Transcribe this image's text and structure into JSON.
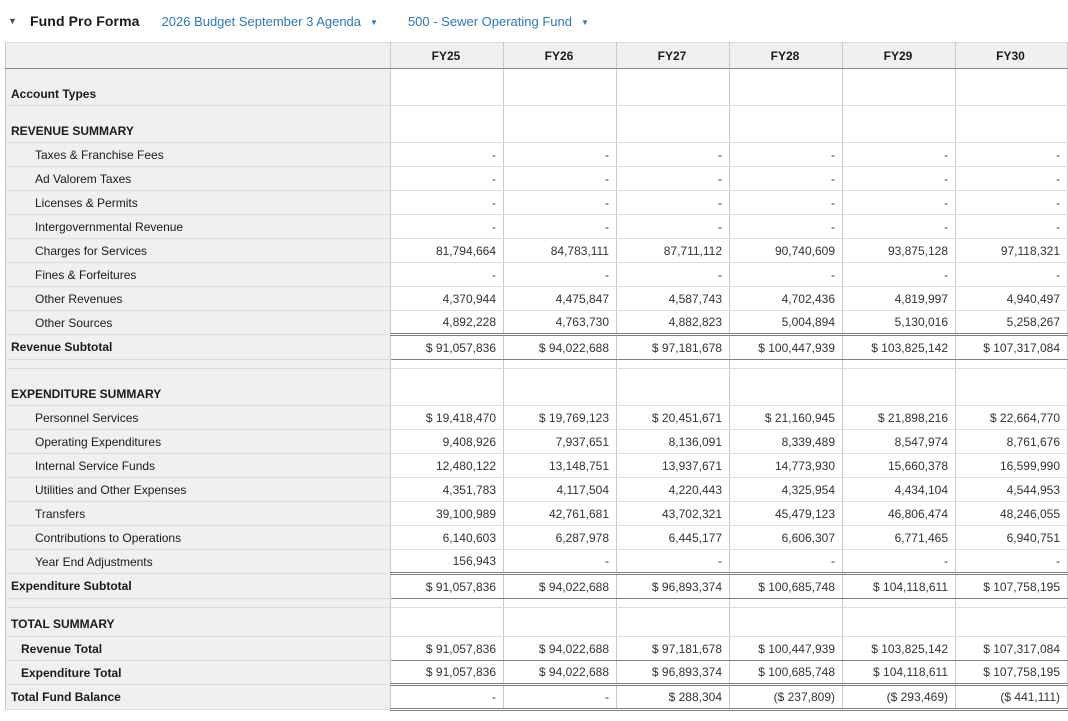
{
  "header": {
    "collapse_icon": "▼",
    "title": "Fund Pro Forma",
    "budget_dropdown": {
      "label": "2026 Budget September 3 Agenda",
      "caret": "▼"
    },
    "fund_dropdown": {
      "label": "500 - Sewer Operating Fund",
      "caret": "▼"
    }
  },
  "colors": {
    "link_blue": "#2e78b8",
    "header_bg": "#f0f0f0",
    "label_column_bg": "#f0f0ef",
    "dark_border": "#7f7f7f",
    "light_border": "#dcdcdc"
  },
  "table": {
    "columns": [
      "FY25",
      "FY26",
      "FY27",
      "FY28",
      "FY29",
      "FY30"
    ],
    "rows": [
      {
        "type": "section",
        "label": "Account Types",
        "values": [
          "",
          "",
          "",
          "",
          "",
          ""
        ]
      },
      {
        "type": "section",
        "label": "REVENUE SUMMARY",
        "values": [
          "",
          "",
          "",
          "",
          "",
          ""
        ]
      },
      {
        "type": "detail",
        "label": "Taxes & Franchise Fees",
        "values": [
          "-",
          "-",
          "-",
          "-",
          "-",
          "-"
        ]
      },
      {
        "type": "detail",
        "label": "Ad Valorem Taxes",
        "values": [
          "-",
          "-",
          "-",
          "-",
          "-",
          "-"
        ]
      },
      {
        "type": "detail",
        "label": "Licenses & Permits",
        "values": [
          "-",
          "-",
          "-",
          "-",
          "-",
          "-"
        ]
      },
      {
        "type": "detail",
        "label": "Intergovernmental Revenue",
        "values": [
          "-",
          "-",
          "-",
          "-",
          "-",
          "-"
        ]
      },
      {
        "type": "detail",
        "label": "Charges for Services",
        "values": [
          "81,794,664",
          "84,783,111",
          "87,711,112",
          "90,740,609",
          "93,875,128",
          "97,118,321"
        ]
      },
      {
        "type": "detail",
        "label": "Fines & Forfeitures",
        "values": [
          "-",
          "-",
          "-",
          "-",
          "-",
          "-"
        ]
      },
      {
        "type": "detail",
        "label": "Other Revenues",
        "values": [
          "4,370,944",
          "4,475,847",
          "4,587,743",
          "4,702,436",
          "4,819,997",
          "4,940,497"
        ]
      },
      {
        "type": "detail",
        "label": "Other Sources",
        "values": [
          "4,892,228",
          "4,763,730",
          "4,882,823",
          "5,004,894",
          "5,130,016",
          "5,258,267"
        ]
      },
      {
        "type": "subtotal",
        "label": "Revenue Subtotal",
        "values": [
          "$ 91,057,836",
          "$ 94,022,688",
          "$ 97,181,678",
          "$ 100,447,939",
          "$ 103,825,142",
          "$ 107,317,084"
        ]
      },
      {
        "type": "spacer",
        "label": "",
        "values": [
          "",
          "",
          "",
          "",
          "",
          ""
        ]
      },
      {
        "type": "section",
        "label": "EXPENDITURE SUMMARY",
        "values": [
          "",
          "",
          "",
          "",
          "",
          ""
        ]
      },
      {
        "type": "detail",
        "label": "Personnel Services",
        "values": [
          "$ 19,418,470",
          "$ 19,769,123",
          "$ 20,451,671",
          "$ 21,160,945",
          "$ 21,898,216",
          "$ 22,664,770"
        ]
      },
      {
        "type": "detail",
        "label": "Operating Expenditures",
        "values": [
          "9,408,926",
          "7,937,651",
          "8,136,091",
          "8,339,489",
          "8,547,974",
          "8,761,676"
        ]
      },
      {
        "type": "detail",
        "label": "Internal Service Funds",
        "values": [
          "12,480,122",
          "13,148,751",
          "13,937,671",
          "14,773,930",
          "15,660,378",
          "16,599,990"
        ]
      },
      {
        "type": "detail",
        "label": "Utilities and Other Expenses",
        "values": [
          "4,351,783",
          "4,117,504",
          "4,220,443",
          "4,325,954",
          "4,434,104",
          "4,544,953"
        ]
      },
      {
        "type": "detail",
        "label": "Transfers",
        "values": [
          "39,100,989",
          "42,761,681",
          "43,702,321",
          "45,479,123",
          "46,806,474",
          "48,246,055"
        ]
      },
      {
        "type": "detail",
        "label": "Contributions to Operations",
        "values": [
          "6,140,603",
          "6,287,978",
          "6,445,177",
          "6,606,307",
          "6,771,465",
          "6,940,751"
        ]
      },
      {
        "type": "detail",
        "label": "Year End Adjustments",
        "values": [
          "156,943",
          "-",
          "-",
          "-",
          "-",
          "-"
        ]
      },
      {
        "type": "subtotal",
        "label": "Expenditure Subtotal",
        "values": [
          "$ 91,057,836",
          "$ 94,022,688",
          "$ 96,893,374",
          "$ 100,685,748",
          "$ 104,118,611",
          "$ 107,758,195"
        ]
      },
      {
        "type": "spacer",
        "label": "",
        "values": [
          "",
          "",
          "",
          "",
          "",
          ""
        ]
      },
      {
        "type": "total_header",
        "label": "TOTAL SUMMARY",
        "values": [
          "",
          "",
          "",
          "",
          "",
          ""
        ]
      },
      {
        "type": "total",
        "label": "Revenue Total",
        "values": [
          "$ 91,057,836",
          "$ 94,022,688",
          "$ 97,181,678",
          "$ 100,447,939",
          "$ 103,825,142",
          "$ 107,317,084"
        ]
      },
      {
        "type": "total",
        "label": "Expenditure Total",
        "values": [
          "$ 91,057,836",
          "$ 94,022,688",
          "$ 96,893,374",
          "$ 100,685,748",
          "$ 104,118,611",
          "$ 107,758,195"
        ]
      },
      {
        "type": "grand_total",
        "label": "Total Fund Balance",
        "values": [
          "-",
          "-",
          "$ 288,304",
          "($ 237,809)",
          "($ 293,469)",
          "($ 441,111)"
        ]
      }
    ]
  }
}
